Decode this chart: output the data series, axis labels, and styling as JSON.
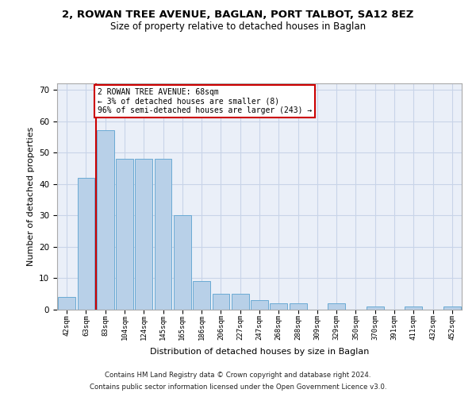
{
  "title": "2, ROWAN TREE AVENUE, BAGLAN, PORT TALBOT, SA12 8EZ",
  "subtitle": "Size of property relative to detached houses in Baglan",
  "xlabel": "Distribution of detached houses by size in Baglan",
  "ylabel": "Number of detached properties",
  "categories": [
    "42sqm",
    "63sqm",
    "83sqm",
    "104sqm",
    "124sqm",
    "145sqm",
    "165sqm",
    "186sqm",
    "206sqm",
    "227sqm",
    "247sqm",
    "268sqm",
    "288sqm",
    "309sqm",
    "329sqm",
    "350sqm",
    "370sqm",
    "391sqm",
    "411sqm",
    "432sqm",
    "452sqm"
  ],
  "values": [
    4,
    42,
    57,
    48,
    48,
    48,
    30,
    9,
    5,
    5,
    3,
    2,
    2,
    0,
    2,
    0,
    1,
    0,
    1,
    0,
    1
  ],
  "bar_color": "#b8d0e8",
  "bar_edgecolor": "#6aaad4",
  "grid_color": "#c8d4e8",
  "background_color": "#eaeff8",
  "vline_color": "#cc0000",
  "annotation_text": "2 ROWAN TREE AVENUE: 68sqm\n← 3% of detached houses are smaller (8)\n96% of semi-detached houses are larger (243) →",
  "annotation_box_facecolor": "#ffffff",
  "annotation_box_edgecolor": "#cc0000",
  "ylim": [
    0,
    72
  ],
  "yticks": [
    0,
    10,
    20,
    30,
    40,
    50,
    60,
    70
  ],
  "footer_line1": "Contains HM Land Registry data © Crown copyright and database right 2024.",
  "footer_line2": "Contains public sector information licensed under the Open Government Licence v3.0."
}
